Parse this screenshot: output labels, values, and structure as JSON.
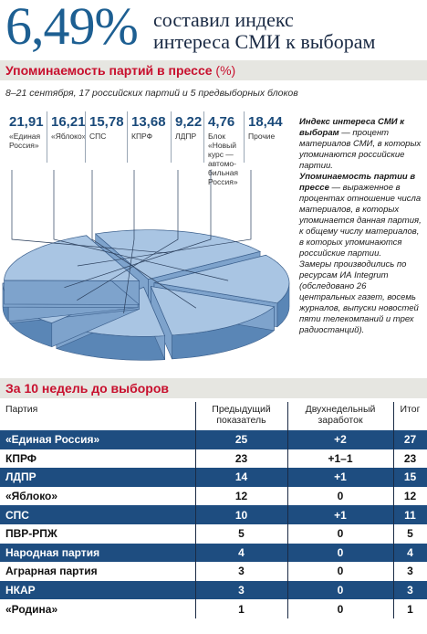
{
  "header": {
    "big_number": "6,49%",
    "line1": "составил индекс",
    "line2": "интереса СМИ к выборам"
  },
  "section1": {
    "title": "Упоминаемость партий в прессе",
    "unit": "(%)",
    "subtitle": "8–21 сентября, 17 российских партий и 5 предвыборных блоков"
  },
  "chart_data": {
    "type": "pie",
    "title": "Упоминаемость партий в прессе (%)",
    "categories": [
      "«Единая Россия»",
      "«Яблоко»",
      "СПС",
      "КПРФ",
      "ЛДПР",
      "Блок «Новый курс — автомобильная Россия»",
      "Прочие"
    ],
    "values": [
      21.91,
      16.21,
      15.78,
      13.68,
      9.22,
      4.76,
      18.44
    ],
    "value_labels": [
      "21,91",
      "16,21",
      "15,78",
      "13,68",
      "9,22",
      "4,76",
      "18,44"
    ],
    "legend_labels": [
      [
        "«Единая",
        "Россия»"
      ],
      [
        "«Яблоко»"
      ],
      [
        "СПС"
      ],
      [
        "КПРФ"
      ],
      [
        "ЛДПР"
      ],
      [
        "Блок",
        "«Новый",
        "курс —",
        "автомо-",
        "бильная",
        "Россия»"
      ],
      [
        "Прочие"
      ]
    ],
    "colors": {
      "top": "#a9c5e3",
      "side": "#5a86b6",
      "edge": "#3b5f8c"
    }
  },
  "side_note": {
    "p1_bold": "Индекс интереса СМИ к выборам",
    "p1_rest": " — процент материалов СМИ, в которых упоминаются российские партии.",
    "p2_bold": "Упоминаемость партии в прессе",
    "p2_rest": " — выраженное в процентах отношение числа материалов, в которых упоминается данная партия, к общему числу материалов, в которых упоминаются российские партии.",
    "p3": "Замеры производились по ресурсам ИА Integrum (обследовано 26 центральных газет, восемь журналов, выпуски новостей пяти телекомпаний и трех радиостанций)."
  },
  "section2": {
    "title": "За 10 недель до выборов",
    "columns": [
      "Партия",
      "Предыдущий показатель",
      "Двухнедельный заработок",
      "Итог"
    ],
    "rows": [
      {
        "party": "«Единая Россия»",
        "prev": "25",
        "gain": "+2",
        "total": "27"
      },
      {
        "party": "КПРФ",
        "prev": "23",
        "gain": "+1–1",
        "total": "23"
      },
      {
        "party": "ЛДПР",
        "prev": "14",
        "gain": "+1",
        "total": "15"
      },
      {
        "party": "«Яблоко»",
        "prev": "12",
        "gain": "0",
        "total": "12"
      },
      {
        "party": "СПС",
        "prev": "10",
        "gain": "+1",
        "total": "11"
      },
      {
        "party": "ПВР-РПЖ",
        "prev": "5",
        "gain": "0",
        "total": "5"
      },
      {
        "party": "Народная партия",
        "prev": "4",
        "gain": "0",
        "total": "4"
      },
      {
        "party": "Аграрная партия",
        "prev": "3",
        "gain": "0",
        "total": "3"
      },
      {
        "party": "НКАР",
        "prev": "3",
        "gain": "0",
        "total": "3"
      },
      {
        "party": "«Родина»",
        "prev": "1",
        "gain": "0",
        "total": "1"
      }
    ]
  }
}
